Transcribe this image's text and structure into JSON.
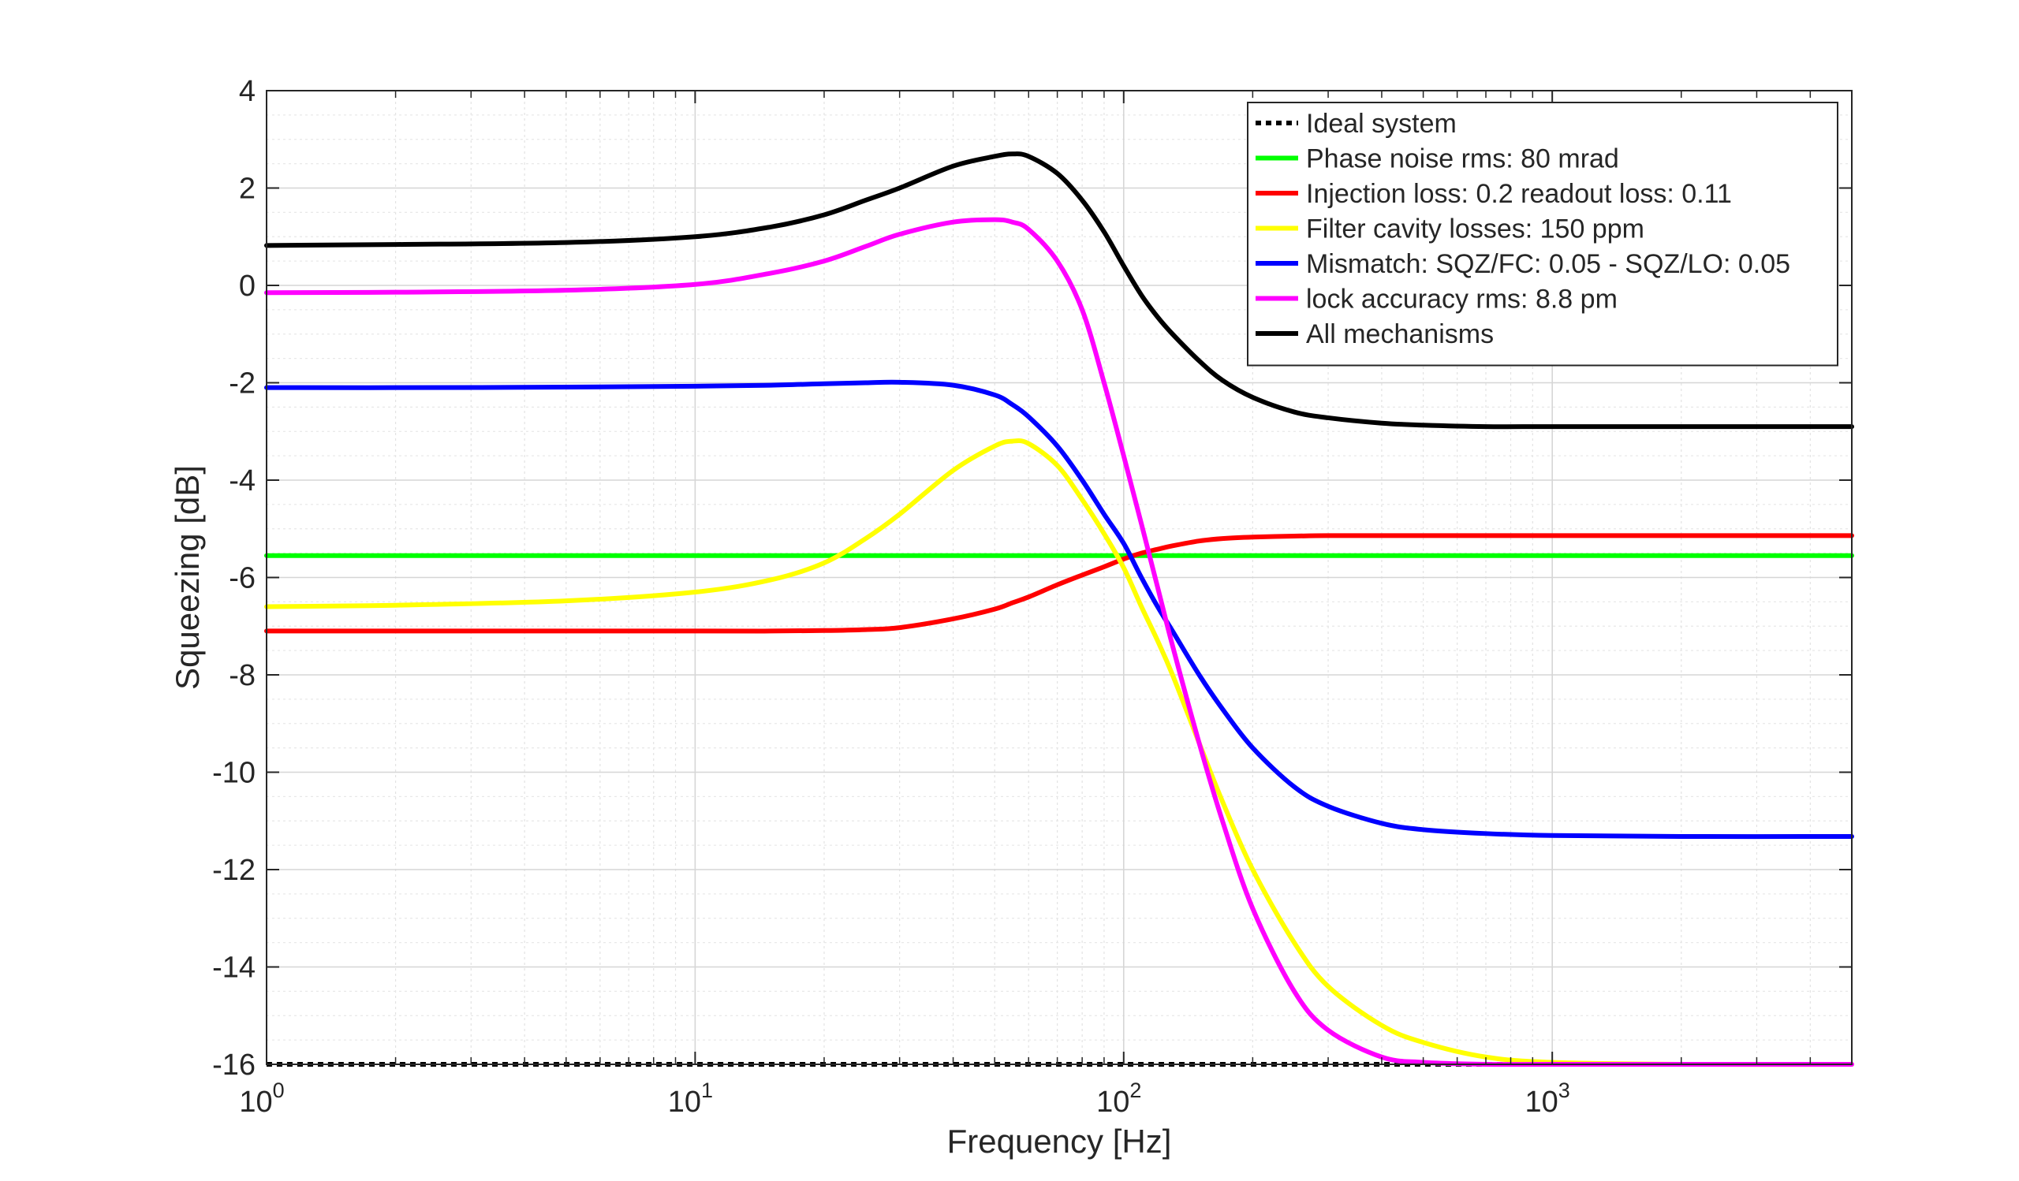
{
  "chart_data": {
    "type": "line",
    "xlabel": "Frequency [Hz]",
    "ylabel": "Squeezing [dB]",
    "xscale": "log",
    "xlim": [
      1,
      5000
    ],
    "ylim": [
      -16,
      4
    ],
    "grid": true,
    "minor_grid": true,
    "legend_position": "top-right",
    "x_ticks": [
      {
        "base": "10",
        "exp": "0",
        "value": 1
      },
      {
        "base": "10",
        "exp": "1",
        "value": 10
      },
      {
        "base": "10",
        "exp": "2",
        "value": 100
      },
      {
        "base": "10",
        "exp": "3",
        "value": 1000
      }
    ],
    "y_ticks": [
      4,
      2,
      0,
      -2,
      -4,
      -6,
      -8,
      -10,
      -12,
      -14,
      -16
    ],
    "x": [
      1,
      2,
      5,
      10,
      15,
      20,
      25,
      30,
      40,
      50,
      55,
      60,
      70,
      80,
      90,
      100,
      110,
      120,
      130,
      150,
      170,
      200,
      250,
      300,
      400,
      500,
      700,
      1000,
      2000,
      5000
    ],
    "series": [
      {
        "name": "Ideal system",
        "color": "#000000",
        "dashed": true,
        "values": [
          -16,
          -16,
          -16,
          -16,
          -16,
          -16,
          -16,
          -16,
          -16,
          -16,
          -16,
          -16,
          -16,
          -16,
          -16,
          -16,
          -16,
          -16,
          -16,
          -16,
          -16,
          -16,
          -16,
          -16,
          -16,
          -16,
          -16,
          -16,
          -16,
          -16
        ]
      },
      {
        "name": "Phase noise rms: 80 mrad",
        "color": "#00ff00",
        "values": [
          -5.55,
          -5.55,
          -5.55,
          -5.55,
          -5.55,
          -5.55,
          -5.55,
          -5.55,
          -5.55,
          -5.55,
          -5.55,
          -5.55,
          -5.55,
          -5.55,
          -5.55,
          -5.55,
          -5.55,
          -5.55,
          -5.55,
          -5.55,
          -5.55,
          -5.55,
          -5.55,
          -5.55,
          -5.55,
          -5.55,
          -5.55,
          -5.55,
          -5.55,
          -5.55
        ]
      },
      {
        "name": "Injection loss: 0.2 readout loss: 0.11",
        "color": "#ff0000",
        "values": [
          -7.1,
          -7.1,
          -7.1,
          -7.1,
          -7.1,
          -7.09,
          -7.07,
          -7.03,
          -6.85,
          -6.65,
          -6.52,
          -6.4,
          -6.15,
          -5.95,
          -5.78,
          -5.62,
          -5.5,
          -5.42,
          -5.35,
          -5.25,
          -5.2,
          -5.17,
          -5.15,
          -5.14,
          -5.14,
          -5.14,
          -5.14,
          -5.14,
          -5.14,
          -5.14
        ]
      },
      {
        "name": "Filter cavity losses: 150 ppm",
        "color": "#ffff00",
        "values": [
          -6.6,
          -6.57,
          -6.48,
          -6.3,
          -6.05,
          -5.7,
          -5.2,
          -4.7,
          -3.8,
          -3.3,
          -3.2,
          -3.25,
          -3.7,
          -4.4,
          -5.1,
          -5.8,
          -6.6,
          -7.3,
          -8.0,
          -9.4,
          -10.6,
          -12.0,
          -13.5,
          -14.4,
          -15.2,
          -15.55,
          -15.85,
          -15.96,
          -16.0,
          -16.0
        ]
      },
      {
        "name": "Mismatch: SQZ/FC: 0.05 - SQZ/LO: 0.05",
        "color": "#0000ff",
        "values": [
          -2.1,
          -2.1,
          -2.09,
          -2.07,
          -2.05,
          -2.02,
          -2.0,
          -1.99,
          -2.05,
          -2.25,
          -2.45,
          -2.7,
          -3.3,
          -4.0,
          -4.7,
          -5.3,
          -6.0,
          -6.6,
          -7.1,
          -8.0,
          -8.7,
          -9.5,
          -10.3,
          -10.7,
          -11.05,
          -11.18,
          -11.26,
          -11.3,
          -11.32,
          -11.32
        ]
      },
      {
        "name": "lock accuracy rms: 8.8 pm",
        "color": "#ff00ff",
        "values": [
          -0.15,
          -0.14,
          -0.1,
          0.02,
          0.25,
          0.5,
          0.8,
          1.05,
          1.3,
          1.35,
          1.3,
          1.15,
          0.5,
          -0.5,
          -2.0,
          -3.5,
          -4.9,
          -6.2,
          -7.4,
          -9.4,
          -11.0,
          -12.8,
          -14.5,
          -15.3,
          -15.85,
          -15.96,
          -16.0,
          -16.0,
          -16.0,
          -16.0
        ]
      },
      {
        "name": "All mechanisms",
        "color": "#000000",
        "values": [
          0.82,
          0.84,
          0.88,
          1.0,
          1.2,
          1.45,
          1.75,
          2.0,
          2.45,
          2.65,
          2.7,
          2.65,
          2.3,
          1.75,
          1.1,
          0.4,
          -0.2,
          -0.65,
          -1.0,
          -1.55,
          -1.95,
          -2.3,
          -2.6,
          -2.72,
          -2.83,
          -2.87,
          -2.9,
          -2.9,
          -2.9,
          -2.9
        ]
      }
    ]
  }
}
